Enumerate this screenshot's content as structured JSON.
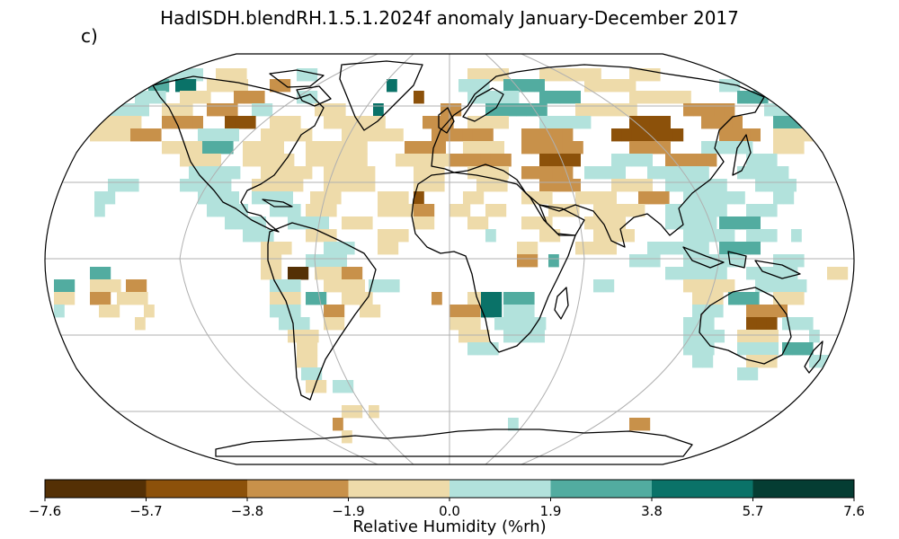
{
  "figure": {
    "title": "HadISDH.blendRH.1.5.1.2024f anomaly January-December 2017",
    "panel_label": "c)"
  },
  "colorbar": {
    "label": "Relative Humidity (%rh)",
    "ticks": [
      "−7.6",
      "−5.7",
      "−3.8",
      "−1.9",
      "0.0",
      "1.9",
      "3.8",
      "5.7",
      "7.6"
    ],
    "colors": [
      "#543005",
      "#8c510a",
      "#c8914a",
      "#eedbaa",
      "#b2e2dc",
      "#52aca0",
      "#0a7268",
      "#053d33"
    ]
  },
  "map": {
    "projection": "Robinson",
    "graticule": true,
    "coastlines": true,
    "color_scale": {
      "d3": "#543005",
      "d2": "#8c510a",
      "d1": "#c8914a",
      "d0": "#eedbaa",
      "w0": "#b2e2dc",
      "w1": "#52aca0",
      "w2": "#0a7268",
      "w3": "#053d33"
    }
  }
}
